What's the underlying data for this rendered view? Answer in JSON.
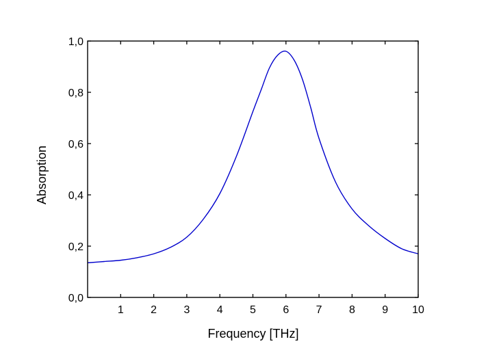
{
  "chart_data": {
    "type": "line",
    "title": "",
    "xlabel": "Frequency [THz]",
    "ylabel": "Absorption",
    "xlim": [
      0,
      10
    ],
    "ylim": [
      0.0,
      1.0
    ],
    "x_ticks": [
      1,
      2,
      3,
      4,
      5,
      6,
      7,
      8,
      9,
      10
    ],
    "x_tick_labels": [
      "1",
      "2",
      "3",
      "4",
      "5",
      "6",
      "7",
      "8",
      "9",
      "10"
    ],
    "y_ticks": [
      0.0,
      0.2,
      0.4,
      0.6,
      0.8,
      1.0
    ],
    "y_tick_labels": [
      "0,0",
      "0,2",
      "0,4",
      "0,6",
      "0,8",
      "1,0"
    ],
    "grid": false,
    "legend": "none",
    "series": [
      {
        "color": "#0000cc",
        "x": [
          0,
          0.5,
          1,
          1.5,
          2,
          2.5,
          3,
          3.5,
          4,
          4.5,
          5,
          5.25,
          5.5,
          5.75,
          6,
          6.25,
          6.5,
          6.75,
          7,
          7.5,
          8,
          8.5,
          9,
          9.5,
          10
        ],
        "y": [
          0.135,
          0.14,
          0.145,
          0.155,
          0.17,
          0.195,
          0.235,
          0.305,
          0.405,
          0.55,
          0.725,
          0.81,
          0.895,
          0.945,
          0.96,
          0.925,
          0.85,
          0.74,
          0.62,
          0.45,
          0.345,
          0.28,
          0.23,
          0.19,
          0.17
        ]
      }
    ]
  }
}
